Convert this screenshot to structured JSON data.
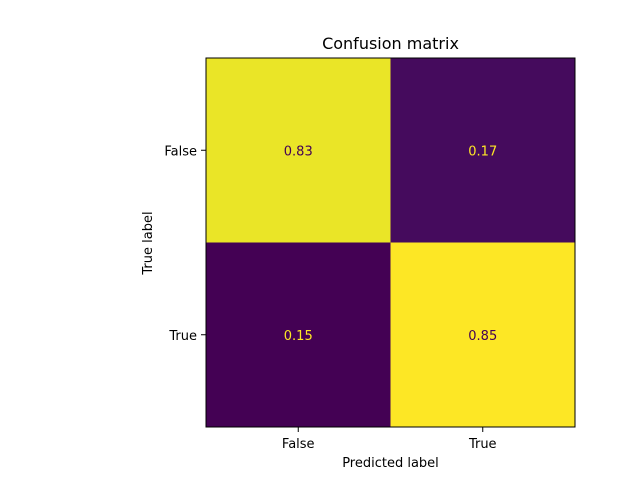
{
  "chart_data": {
    "type": "heatmap",
    "title": "Confusion matrix",
    "xlabel": "Predicted label",
    "ylabel": "True label",
    "x_categories": [
      "False",
      "True"
    ],
    "y_categories": [
      "False",
      "True"
    ],
    "values": [
      [
        0.83,
        0.17
      ],
      [
        0.15,
        0.85
      ]
    ],
    "colormap": "viridis",
    "value_range": [
      0.15,
      0.85
    ],
    "dark_cell_color": "#440154",
    "bright_cell_color": "#fde725",
    "text_on_dark": "#fde725",
    "text_on_bright": "#440154",
    "grid": false,
    "colorbar": false
  }
}
